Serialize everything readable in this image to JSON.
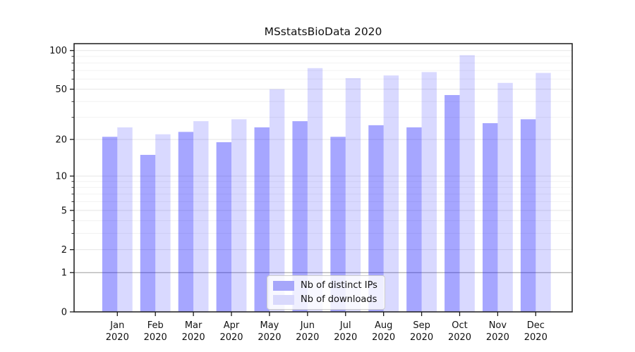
{
  "chart_data": {
    "type": "bar",
    "title": "MSstatsBioData 2020",
    "categories": [
      "Jan 2020",
      "Feb 2020",
      "Mar 2020",
      "Apr 2020",
      "May 2020",
      "Jun 2020",
      "Jul 2020",
      "Aug 2020",
      "Sep 2020",
      "Oct 2020",
      "Nov 2020",
      "Dec 2020"
    ],
    "series": [
      {
        "name": "Nb of distinct IPs",
        "color": "#a6a6fa",
        "fill": "rgba(0,0,255,0.35)",
        "values": [
          21,
          15,
          23,
          19,
          25,
          28,
          21,
          26,
          25,
          45,
          27,
          29
        ]
      },
      {
        "name": "Nb of downloads",
        "color": "#d9d9fc",
        "fill": "rgba(0,0,255,0.15)",
        "values": [
          25,
          22,
          28,
          29,
          50,
          73,
          61,
          64,
          68,
          92,
          56,
          67
        ]
      }
    ],
    "y_scale": "log1p",
    "y_ticks": [
      0,
      1,
      2,
      5,
      10,
      20,
      50,
      100
    ],
    "y_minor_ticks": [
      3,
      4,
      6,
      7,
      8,
      9,
      30,
      40,
      60,
      70,
      80,
      90
    ],
    "ylim": [
      0,
      113
    ],
    "xlabel": "",
    "ylabel": "",
    "grid": true,
    "legend_position": "lower center"
  },
  "colors": {
    "bar_distinct_ips": "#a6a6fa",
    "bar_downloads": "#d9d9fc",
    "gridline_major": "#e5e5e5",
    "gridline_minor": "#f2f2f2",
    "gridline_at_one": "#9c9c9c",
    "axis": "#1a1a1a",
    "background": "#ffffff"
  }
}
